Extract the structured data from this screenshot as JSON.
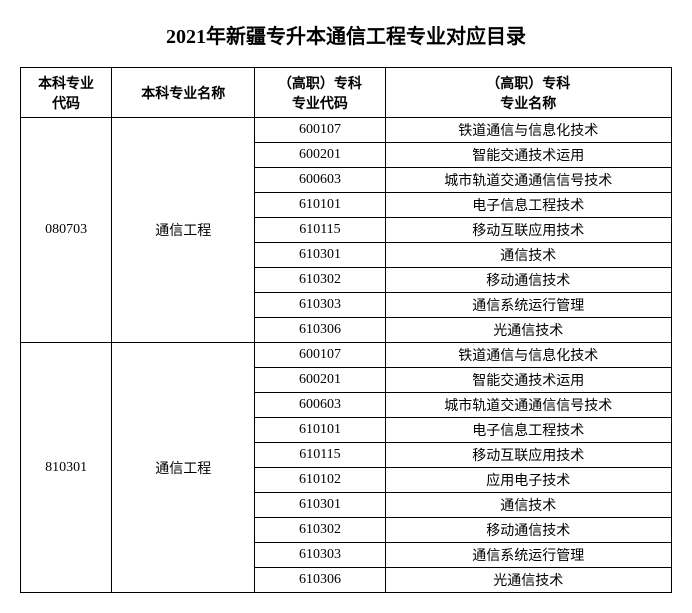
{
  "title": "2021年新疆专升本通信工程专业对应目录",
  "headers": {
    "col1": "本科专业\n代码",
    "col2": "本科专业名称",
    "col3": "（高职）专科\n专业代码",
    "col4": "（高职）专科\n专业名称"
  },
  "groups": [
    {
      "bachelor_code": "080703",
      "bachelor_name": "通信工程",
      "rows": [
        {
          "code": "600107",
          "name": "铁道通信与信息化技术"
        },
        {
          "code": "600201",
          "name": "智能交通技术运用"
        },
        {
          "code": "600603",
          "name": "城市轨道交通通信信号技术"
        },
        {
          "code": "610101",
          "name": "电子信息工程技术"
        },
        {
          "code": "610115",
          "name": "移动互联应用技术"
        },
        {
          "code": "610301",
          "name": "通信技术"
        },
        {
          "code": "610302",
          "name": "移动通信技术"
        },
        {
          "code": "610303",
          "name": "通信系统运行管理"
        },
        {
          "code": "610306",
          "name": "光通信技术"
        }
      ]
    },
    {
      "bachelor_code": "810301",
      "bachelor_name": "通信工程",
      "rows": [
        {
          "code": "600107",
          "name": "铁道通信与信息化技术"
        },
        {
          "code": "600201",
          "name": "智能交通技术运用"
        },
        {
          "code": "600603",
          "name": "城市轨道交通通信信号技术"
        },
        {
          "code": "610101",
          "name": "电子信息工程技术"
        },
        {
          "code": "610115",
          "name": "移动互联应用技术"
        },
        {
          "code": "610102",
          "name": "应用电子技术"
        },
        {
          "code": "610301",
          "name": "通信技术"
        },
        {
          "code": "610302",
          "name": "移动通信技术"
        },
        {
          "code": "610303",
          "name": "通信系统运行管理"
        },
        {
          "code": "610306",
          "name": "光通信技术"
        }
      ]
    }
  ],
  "style": {
    "title_fontsize": 20,
    "cell_fontsize": 14,
    "border_color": "#000000",
    "background_color": "#ffffff",
    "text_color": "#000000"
  }
}
